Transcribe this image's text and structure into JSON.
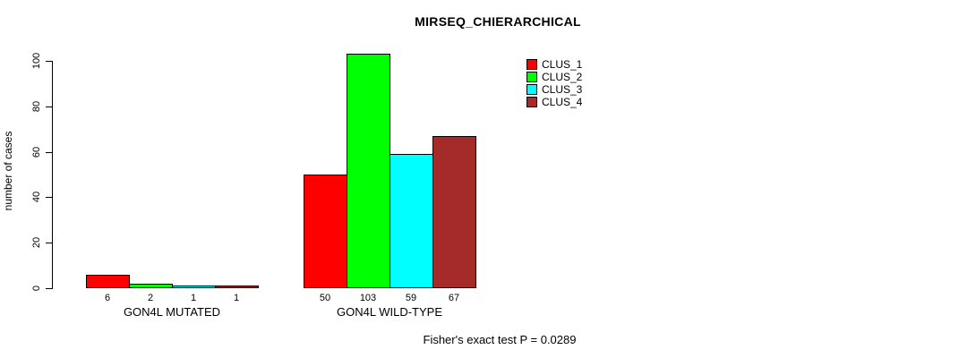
{
  "chart_data": {
    "type": "bar",
    "title": "MIRSEQ_CHIERARCHICAL",
    "ylabel": "number of cases",
    "footer": "Fisher's exact test P = 0.0289",
    "categories": [
      "GON4L MUTATED",
      "GON4L WILD-TYPE"
    ],
    "series": [
      {
        "name": "CLUS_1",
        "color": "#FF0000",
        "values": [
          6,
          50
        ]
      },
      {
        "name": "CLUS_2",
        "color": "#00FF00",
        "values": [
          2,
          103
        ]
      },
      {
        "name": "CLUS_3",
        "color": "#00FFFF",
        "values": [
          1,
          59
        ]
      },
      {
        "name": "CLUS_4",
        "color": "#A52A2A",
        "values": [
          1,
          67
        ]
      }
    ],
    "bar_value_labels": [
      [
        6,
        2,
        1,
        1
      ],
      [
        50,
        103,
        59,
        67
      ]
    ],
    "yticks": [
      0,
      20,
      40,
      60,
      80,
      100
    ],
    "ylim": [
      0,
      100
    ],
    "grid": false,
    "legend_position": "top-right",
    "background_color": "#FFFFFF",
    "axis_color": "#000000"
  }
}
